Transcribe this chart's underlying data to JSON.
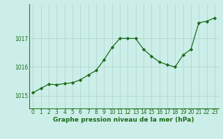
{
  "x": [
    0,
    1,
    2,
    3,
    4,
    5,
    6,
    7,
    8,
    9,
    10,
    11,
    12,
    13,
    14,
    15,
    16,
    17,
    18,
    19,
    20,
    21,
    22,
    23
  ],
  "y": [
    1015.1,
    1015.25,
    1015.4,
    1015.38,
    1015.42,
    1015.45,
    1015.55,
    1015.72,
    1015.88,
    1016.25,
    1016.68,
    1017.0,
    1017.0,
    1017.0,
    1016.62,
    1016.38,
    1016.18,
    1016.08,
    1016.0,
    1016.42,
    1016.62,
    1017.55,
    1017.6,
    1017.72
  ],
  "line_color": "#1a6b1a",
  "marker_color": "#1a6b1a",
  "bg_color": "#cceee8",
  "grid_color": "#aad4cc",
  "xlabel": "Graphe pression niveau de la mer (hPa)",
  "xlabel_color": "#1a6b1a",
  "xlabel_fontsize": 6.5,
  "tick_color": "#1a6b1a",
  "tick_fontsize": 5.5,
  "yticks": [
    1015,
    1016,
    1017
  ],
  "ylim": [
    1014.55,
    1018.2
  ],
  "xlim": [
    -0.5,
    23.5
  ]
}
